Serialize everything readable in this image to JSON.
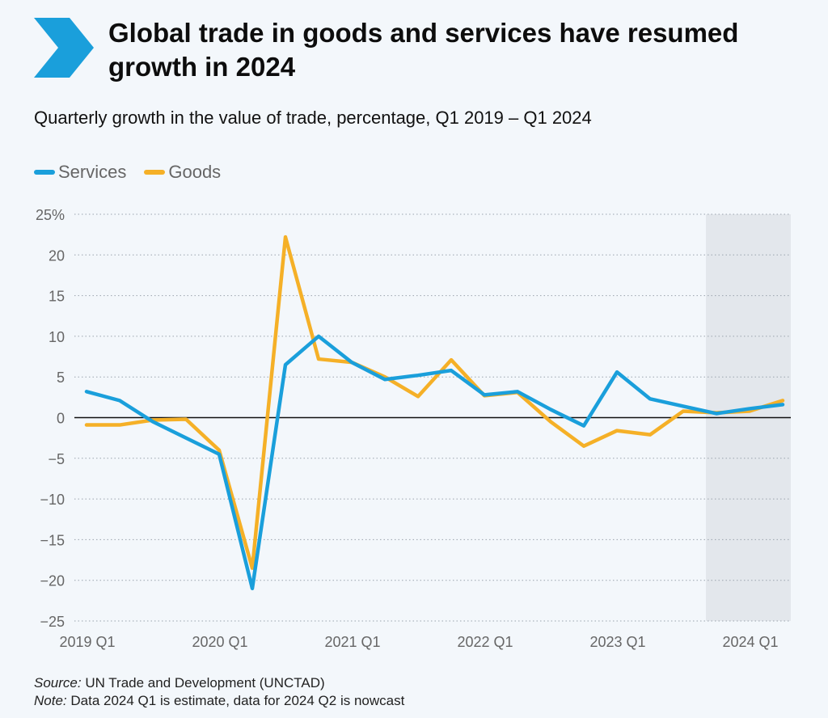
{
  "header": {
    "title": "Global trade in goods and services have resumed growth in 2024",
    "subtitle": "Quarterly growth in the value of trade, percentage, Q1 2019 – Q1 2024",
    "icon": "chevron-right-icon",
    "accent_color": "#1a9fdb"
  },
  "footer": {
    "source_label": "Source:",
    "source_text": "UN Trade and Development (UNCTAD)",
    "note_label": "Note:",
    "note_text": "Data 2024 Q1 is estimate, data for 2024 Q2 is nowcast"
  },
  "chart_data": {
    "type": "line",
    "title": "Global trade in goods and services have resumed growth in 2024",
    "subtitle": "Quarterly growth in the value of trade, percentage, Q1 2019 – Q1 2024",
    "x": [
      "2019 Q1",
      "2019 Q2",
      "2019 Q3",
      "2019 Q4",
      "2020 Q1",
      "2020 Q2",
      "2020 Q3",
      "2020 Q4",
      "2021 Q1",
      "2021 Q2",
      "2021 Q3",
      "2021 Q4",
      "2022 Q1",
      "2022 Q2",
      "2022 Q3",
      "2022 Q4",
      "2023 Q1",
      "2023 Q2",
      "2023 Q3",
      "2023 Q4",
      "2024 Q1",
      "2024 Q2"
    ],
    "x_tick_labels": [
      "2019 Q1",
      "2020 Q1",
      "2021 Q1",
      "2022 Q1",
      "2023 Q1",
      "2024 Q1"
    ],
    "y_tick_labels": [
      "25%",
      "20",
      "15",
      "10",
      "5",
      "0",
      "−5",
      "−10",
      "−15",
      "−20",
      "−25"
    ],
    "ylim": [
      -25,
      25
    ],
    "y_ticks": [
      25,
      20,
      15,
      10,
      5,
      0,
      -5,
      -10,
      -15,
      -20,
      -25
    ],
    "grid": "horizontal dotted",
    "legend_position": "top-left",
    "shaded_region": {
      "from": "2024 Q1",
      "to": "2024 Q2"
    },
    "series": [
      {
        "name": "Services",
        "color": "#1a9fdb",
        "values": [
          3.2,
          2.1,
          -0.5,
          -2.5,
          -4.5,
          -21.0,
          6.5,
          10.0,
          6.8,
          4.7,
          5.2,
          5.8,
          2.8,
          3.2,
          1.0,
          -1.0,
          5.6,
          2.3,
          1.4,
          0.5,
          1.1,
          1.6
        ]
      },
      {
        "name": "Goods",
        "color": "#f5b027",
        "values": [
          -0.9,
          -0.9,
          -0.3,
          -0.2,
          -4.0,
          -18.5,
          22.2,
          7.2,
          6.8,
          5.0,
          2.6,
          7.1,
          2.7,
          3.1,
          -0.5,
          -3.5,
          -1.6,
          -2.1,
          0.8,
          0.6,
          0.8,
          2.1
        ]
      }
    ]
  }
}
